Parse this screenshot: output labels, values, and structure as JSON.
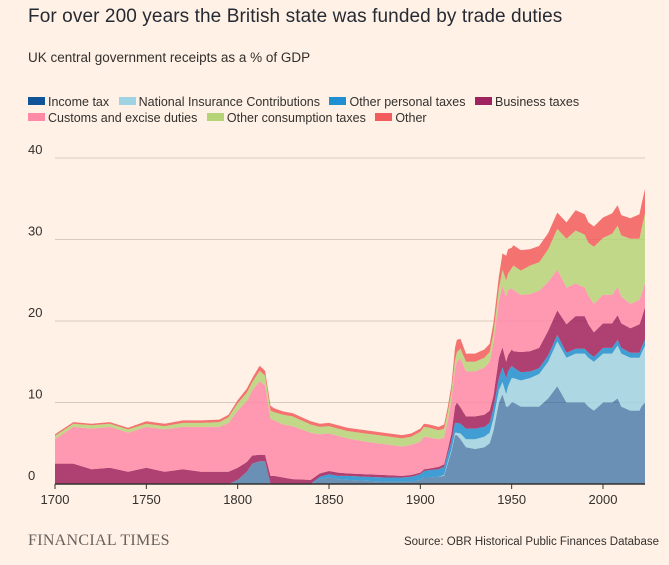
{
  "header": {
    "title": "For over 200 years the British state was funded by trade duties",
    "subtitle": "UK central government receipts as a % of GDP"
  },
  "footer": {
    "brand": "FINANCIAL TIMES",
    "source": "Source: OBR Historical Public Finances Database"
  },
  "chart_data": {
    "type": "area",
    "stacked": true,
    "xlim": [
      1700,
      2023
    ],
    "ylim": [
      0,
      40
    ],
    "xticks": [
      1700,
      1750,
      1800,
      1850,
      1900,
      1950,
      2000
    ],
    "yticks": [
      0,
      10,
      20,
      30,
      40
    ],
    "grid": "horizontal",
    "legend_position": "top-left",
    "title": "For over 200 years the British state was funded by trade duties",
    "subtitle": "UK central government receipts as a % of GDP",
    "x": [
      1700,
      1710,
      1720,
      1730,
      1740,
      1750,
      1760,
      1770,
      1780,
      1790,
      1795,
      1800,
      1805,
      1808,
      1812,
      1815,
      1818,
      1820,
      1825,
      1830,
      1840,
      1845,
      1850,
      1855,
      1860,
      1870,
      1880,
      1890,
      1895,
      1900,
      1902,
      1905,
      1910,
      1913,
      1915,
      1917,
      1919,
      1920,
      1922,
      1925,
      1930,
      1935,
      1938,
      1940,
      1943,
      1945,
      1947,
      1948,
      1950,
      1951,
      1955,
      1960,
      1965,
      1970,
      1975,
      1980,
      1985,
      1990,
      1992,
      1995,
      2000,
      2005,
      2008,
      2010,
      2015,
      2020,
      2021,
      2023
    ],
    "series": [
      {
        "name": "Income tax",
        "color": "#0f5499",
        "values": [
          0,
          0,
          0,
          0,
          0,
          0,
          0,
          0,
          0,
          0,
          0,
          0.5,
          1.5,
          2.5,
          2.8,
          2.8,
          0,
          0,
          0,
          0,
          0,
          0.6,
          0.8,
          0.6,
          0.5,
          0.4,
          0.3,
          0.3,
          0.3,
          0.5,
          0.8,
          0.8,
          0.9,
          1.0,
          2.5,
          4,
          6,
          6,
          5.5,
          4.5,
          4.3,
          4.5,
          5,
          6.5,
          10,
          11,
          9.5,
          9.5,
          10,
          10,
          9.5,
          9.5,
          9.5,
          10.5,
          12,
          10,
          10,
          10,
          9.5,
          9,
          10,
          10,
          10.5,
          9.5,
          9,
          9,
          9.5,
          10
        ]
      },
      {
        "name": "National Insurance Contributions",
        "color": "#9fd3e3",
        "values": [
          0,
          0,
          0,
          0,
          0,
          0,
          0,
          0,
          0,
          0,
          0,
          0,
          0,
          0,
          0,
          0,
          0,
          0,
          0,
          0,
          0,
          0,
          0,
          0,
          0,
          0,
          0,
          0,
          0,
          0,
          0,
          0,
          0,
          0.1,
          0.2,
          0.2,
          0.3,
          0.3,
          0.7,
          1,
          1.2,
          1.3,
          1.3,
          1.5,
          1.5,
          1.5,
          1.5,
          2.5,
          3,
          3,
          3.2,
          3.5,
          4,
          4.5,
          5.5,
          5.5,
          6,
          6,
          6,
          6,
          6,
          6,
          6.5,
          6.5,
          6.5,
          6.5,
          6.5,
          7
        ]
      },
      {
        "name": "Other personal taxes",
        "color": "#1f8fd1",
        "values": [
          0,
          0,
          0,
          0,
          0,
          0,
          0,
          0,
          0,
          0,
          0,
          0,
          0,
          0,
          0,
          0,
          0,
          0,
          0,
          0,
          0,
          0.3,
          0.4,
          0.4,
          0.5,
          0.5,
          0.5,
          0.5,
          0.6,
          0.7,
          0.8,
          0.9,
          0.9,
          1,
          1,
          1,
          1.2,
          1.2,
          1.2,
          1.3,
          1.3,
          1.2,
          1.2,
          1.3,
          1.5,
          1.8,
          2,
          1.8,
          1.5,
          1.3,
          1,
          0.8,
          0.7,
          0.8,
          0.8,
          0.6,
          0.6,
          0.6,
          0.6,
          0.6,
          0.7,
          0.7,
          0.7,
          0.7,
          0.6,
          0.6,
          0.7,
          0.7
        ]
      },
      {
        "name": "Business taxes",
        "color": "#a0225e",
        "values": [
          2.5,
          2.5,
          1.8,
          2,
          1.5,
          2,
          1.5,
          1.8,
          1.5,
          1.5,
          1.5,
          1.5,
          1.2,
          1,
          0.8,
          0.8,
          1,
          1,
          0.8,
          0.6,
          0.5,
          0.4,
          0.4,
          0.4,
          0.3,
          0.3,
          0.3,
          0.2,
          0.2,
          0.2,
          0.2,
          0.2,
          0.3,
          0.3,
          0.5,
          1,
          2,
          2.5,
          2,
          1.5,
          1.5,
          1.5,
          1.5,
          1.5,
          2.5,
          2.5,
          2,
          2,
          2,
          2,
          2.5,
          2.5,
          2.5,
          3,
          3,
          3.5,
          4,
          4,
          3.5,
          3,
          3,
          3,
          3,
          3,
          3,
          3.5,
          3.5,
          4
        ]
      },
      {
        "name": "Customs and excise duties",
        "color": "#ff8aa8",
        "values": [
          3,
          4.5,
          5,
          5,
          4.8,
          5,
          5.2,
          5.2,
          5.5,
          5.5,
          6,
          7,
          7.5,
          8,
          9,
          8.5,
          7,
          6.8,
          6.5,
          6.5,
          5.8,
          4.8,
          4.6,
          4.5,
          4.3,
          4,
          3.8,
          3.6,
          3.7,
          3.8,
          4,
          3.8,
          3.4,
          3.3,
          3.5,
          4,
          4.5,
          5,
          6,
          5.5,
          5.5,
          5.8,
          6,
          6.5,
          7,
          7.5,
          8,
          8,
          7.5,
          7.5,
          7,
          7,
          7,
          6,
          5,
          4.5,
          4,
          3.5,
          3.5,
          3.5,
          3.5,
          3.5,
          3.5,
          3.3,
          3,
          3,
          3,
          3
        ]
      },
      {
        "name": "Other consumption taxes",
        "color": "#b5d377",
        "values": [
          0.4,
          0.4,
          0.4,
          0.4,
          0.4,
          0.4,
          0.4,
          0.5,
          0.5,
          0.6,
          0.7,
          0.9,
          1,
          1,
          1.3,
          1.2,
          1,
          1,
          1.2,
          1.2,
          1,
          0.9,
          0.9,
          0.9,
          0.9,
          1,
          1,
          1,
          1,
          1.2,
          1.2,
          1.2,
          1.1,
          1.1,
          1.1,
          1.1,
          1.2,
          1.2,
          1.2,
          1.2,
          1.2,
          1.2,
          1.2,
          1.2,
          1.5,
          2,
          2,
          2,
          2.5,
          3,
          3,
          3.5,
          3.5,
          4,
          5,
          6,
          6.5,
          6.5,
          6.5,
          7,
          7,
          7.5,
          7.5,
          7.5,
          8,
          7.5,
          8,
          8.5
        ]
      },
      {
        "name": "Other",
        "color": "#f25c5c",
        "values": [
          0.2,
          0.2,
          0.2,
          0.2,
          0.2,
          0.3,
          0.3,
          0.3,
          0.3,
          0.3,
          0.3,
          0.4,
          0.5,
          0.5,
          0.6,
          0.6,
          0.6,
          0.5,
          0.4,
          0.4,
          0.4,
          0.4,
          0.4,
          0.4,
          0.4,
          0.4,
          0.4,
          0.4,
          0.4,
          0.4,
          0.4,
          0.4,
          0.4,
          0.5,
          0.6,
          0.8,
          1.5,
          1.5,
          1.2,
          1,
          1,
          1,
          1,
          1.2,
          1.5,
          2,
          3,
          3,
          2.5,
          2.5,
          2.5,
          2,
          2,
          2,
          2,
          2,
          2.5,
          2.5,
          2.5,
          2.5,
          2.5,
          2.5,
          2.5,
          2.5,
          2.5,
          3,
          3,
          3
        ]
      }
    ]
  }
}
